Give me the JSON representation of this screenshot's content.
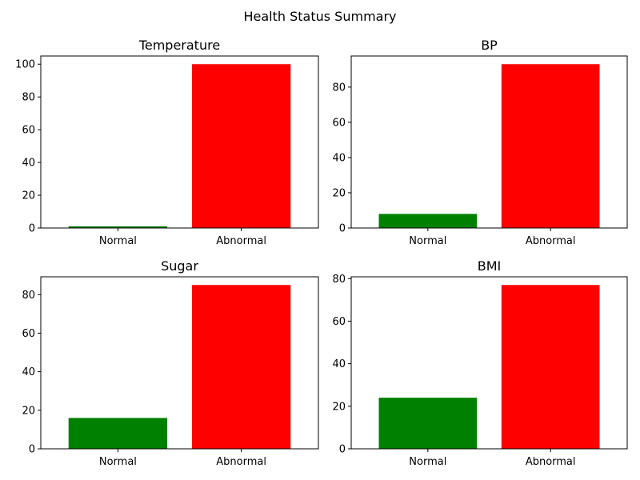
{
  "figure": {
    "title": "Health Status Summary"
  },
  "chart_data": [
    {
      "type": "bar",
      "title": "Temperature",
      "categories": [
        "Normal",
        "Abnormal"
      ],
      "values": [
        1,
        100
      ],
      "colors": [
        "#008000",
        "#ff0000"
      ],
      "ylim": [
        0,
        105
      ],
      "yticks": [
        0,
        20,
        40,
        60,
        80,
        100
      ],
      "xlabel": "",
      "ylabel": "",
      "grid": false
    },
    {
      "type": "bar",
      "title": "BP",
      "categories": [
        "Normal",
        "Abnormal"
      ],
      "values": [
        8,
        93
      ],
      "colors": [
        "#008000",
        "#ff0000"
      ],
      "ylim": [
        0,
        97.65
      ],
      "yticks": [
        0,
        20,
        40,
        60,
        80
      ],
      "xlabel": "",
      "ylabel": "",
      "grid": false
    },
    {
      "type": "bar",
      "title": "Sugar",
      "categories": [
        "Normal",
        "Abnormal"
      ],
      "values": [
        16,
        85
      ],
      "colors": [
        "#008000",
        "#ff0000"
      ],
      "ylim": [
        0,
        89.25
      ],
      "yticks": [
        0,
        20,
        40,
        60,
        80
      ],
      "xlabel": "",
      "ylabel": "",
      "grid": false
    },
    {
      "type": "bar",
      "title": "BMI",
      "categories": [
        "Normal",
        "Abnormal"
      ],
      "values": [
        24,
        77
      ],
      "colors": [
        "#008000",
        "#ff0000"
      ],
      "ylim": [
        0,
        80.85
      ],
      "yticks": [
        0,
        20,
        40,
        60,
        80
      ],
      "xlabel": "",
      "ylabel": "",
      "grid": false
    }
  ]
}
